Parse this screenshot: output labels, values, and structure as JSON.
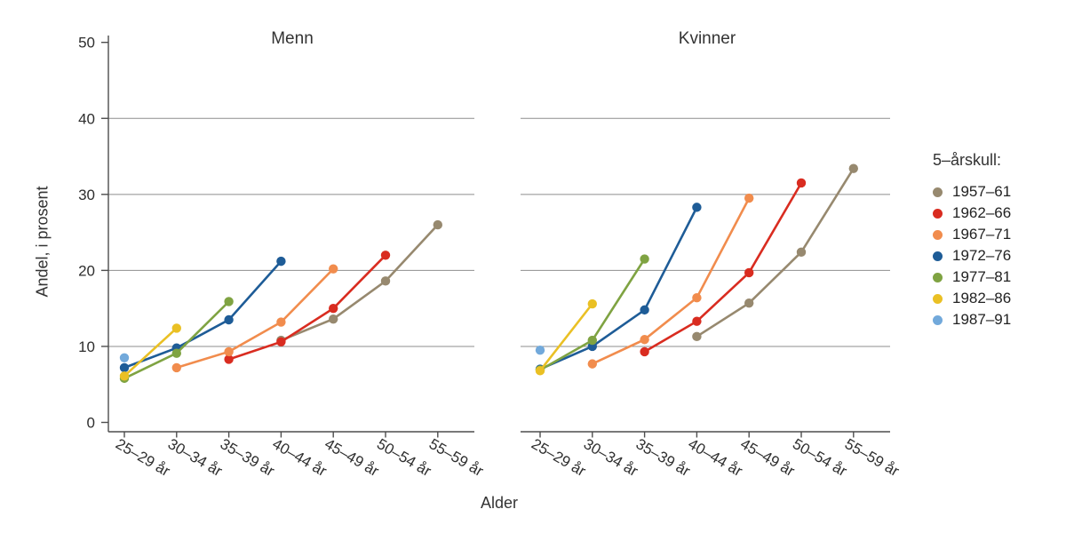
{
  "chart_data": {
    "type": "line",
    "xlabel": "Alder",
    "ylabel": "Andel, i prosent",
    "ylim": [
      0,
      50
    ],
    "yticks": [
      0,
      10,
      20,
      30,
      40,
      50
    ],
    "gridlines_at": [
      10,
      20,
      30,
      40
    ],
    "grid_on": true,
    "categories": [
      "25–29 år",
      "30–34 år",
      "35–39 år",
      "40–44 år",
      "45–49 år",
      "50–54 år",
      "55–59 år"
    ],
    "legend": {
      "title": "5–årskull:",
      "position": "right",
      "cohorts": [
        {
          "label": "1957–61",
          "color": "#97896F"
        },
        {
          "label": "1962–66",
          "color": "#D92C20"
        },
        {
          "label": "1967–71",
          "color": "#F18C4D"
        },
        {
          "label": "1972–76",
          "color": "#1E5C97"
        },
        {
          "label": "1977–81",
          "color": "#7FA342"
        },
        {
          "label": "1982–86",
          "color": "#EAC024"
        },
        {
          "label": "1987–91",
          "color": "#72A9DB"
        }
      ]
    },
    "style": {
      "grid_color": "#8e8e8e",
      "axis_color": "#4d4d4d",
      "background": "#ffffff",
      "line_width": 2.6,
      "point_radius": 5.2
    },
    "panels": [
      {
        "title": "Menn",
        "series": [
          {
            "cohort": "1957–61",
            "x": [
              "40–44 år",
              "45–49 år",
              "50–54 år",
              "55–59 år"
            ],
            "y": [
              10.8,
              13.6,
              18.6,
              26.0
            ]
          },
          {
            "cohort": "1962–66",
            "x": [
              "35–39 år",
              "40–44 år",
              "45–49 år",
              "50–54 år"
            ],
            "y": [
              8.3,
              10.6,
              15.0,
              22.0
            ]
          },
          {
            "cohort": "1967–71",
            "x": [
              "30–34 år",
              "35–39 år",
              "40–44 år",
              "45–49 år"
            ],
            "y": [
              7.2,
              9.3,
              13.2,
              20.2
            ]
          },
          {
            "cohort": "1972–76",
            "x": [
              "25–29 år",
              "30–34 år",
              "35–39 år",
              "40–44 år"
            ],
            "y": [
              7.2,
              9.8,
              13.5,
              21.2
            ]
          },
          {
            "cohort": "1977–81",
            "x": [
              "25–29 år",
              "30–34 år",
              "35–39 år"
            ],
            "y": [
              5.8,
              9.1,
              15.9
            ]
          },
          {
            "cohort": "1982–86",
            "x": [
              "25–29 år",
              "30–34 år"
            ],
            "y": [
              6.1,
              12.4
            ]
          },
          {
            "cohort": "1987–91",
            "x": [
              "25–29 år"
            ],
            "y": [
              8.5
            ]
          }
        ]
      },
      {
        "title": "Kvinner",
        "series": [
          {
            "cohort": "1957–61",
            "x": [
              "40–44 år",
              "45–49 år",
              "50–54 år",
              "55–59 år"
            ],
            "y": [
              11.3,
              15.7,
              22.4,
              33.4
            ]
          },
          {
            "cohort": "1962–66",
            "x": [
              "35–39 år",
              "40–44 år",
              "45–49 år",
              "50–54 år"
            ],
            "y": [
              9.3,
              13.3,
              19.7,
              31.5
            ]
          },
          {
            "cohort": "1967–71",
            "x": [
              "30–34 år",
              "35–39 år",
              "40–44 år",
              "45–49 år"
            ],
            "y": [
              7.7,
              10.9,
              16.4,
              29.5
            ]
          },
          {
            "cohort": "1972–76",
            "x": [
              "25–29 år",
              "30–34 år",
              "35–39 år",
              "40–44 år"
            ],
            "y": [
              7.0,
              10.0,
              14.8,
              28.3
            ]
          },
          {
            "cohort": "1977–81",
            "x": [
              "25–29 år",
              "30–34 år",
              "35–39 år"
            ],
            "y": [
              6.9,
              10.8,
              21.5
            ]
          },
          {
            "cohort": "1982–86",
            "x": [
              "25–29 år",
              "30–34 år"
            ],
            "y": [
              6.8,
              15.6
            ]
          },
          {
            "cohort": "1987–91",
            "x": [
              "25–29 år"
            ],
            "y": [
              9.5
            ]
          }
        ]
      }
    ]
  }
}
